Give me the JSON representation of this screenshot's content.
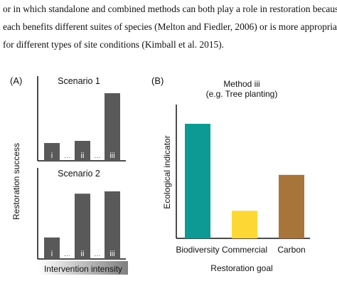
{
  "text": {
    "lines": [
      "or in which standalone and combined methods can both play a role in restoration because",
      "each benefits different suites of species (Melton and Fiedler, 2006) or is more appropriate",
      "for different types of site conditions (Kimball et al. 2015)."
    ]
  },
  "colors": {
    "scenario_bars": "#595959",
    "biodiversity": "#0e9a94",
    "commercial": "#fdd835",
    "carbon": "#a7743a",
    "gradient_start": "#ffffff",
    "gradient_end": "#7f7f7f"
  },
  "chart_data": [
    {
      "type": "bar",
      "panel": "(A)",
      "title": "Scenario 1",
      "categories": [
        "i",
        "ii",
        "iii"
      ],
      "separators": [
        "…",
        "…"
      ],
      "values": [
        0.25,
        0.28,
        0.95
      ],
      "ylabel": "Restoration success",
      "xlabel": "Intervention intensity",
      "ylim": [
        0,
        1
      ]
    },
    {
      "type": "bar",
      "panel": "(A)",
      "title": "Scenario 2",
      "categories": [
        "i",
        "ii",
        "iii"
      ],
      "separators": [
        "…",
        "…"
      ],
      "values": [
        0.28,
        0.85,
        0.88
      ],
      "ylabel": "Restoration success",
      "xlabel": "Intervention intensity",
      "ylim": [
        0,
        1
      ]
    },
    {
      "type": "bar",
      "panel": "(B)",
      "title": "Method iii",
      "subtitle": "(e.g. Tree planting)",
      "categories": [
        "Biodiversity",
        "Commercial",
        "Carbon"
      ],
      "values": [
        0.83,
        0.2,
        0.46
      ],
      "ylabel": "Ecological indicator",
      "xlabel": "Restoration goal",
      "ylim": [
        0,
        1
      ]
    }
  ]
}
